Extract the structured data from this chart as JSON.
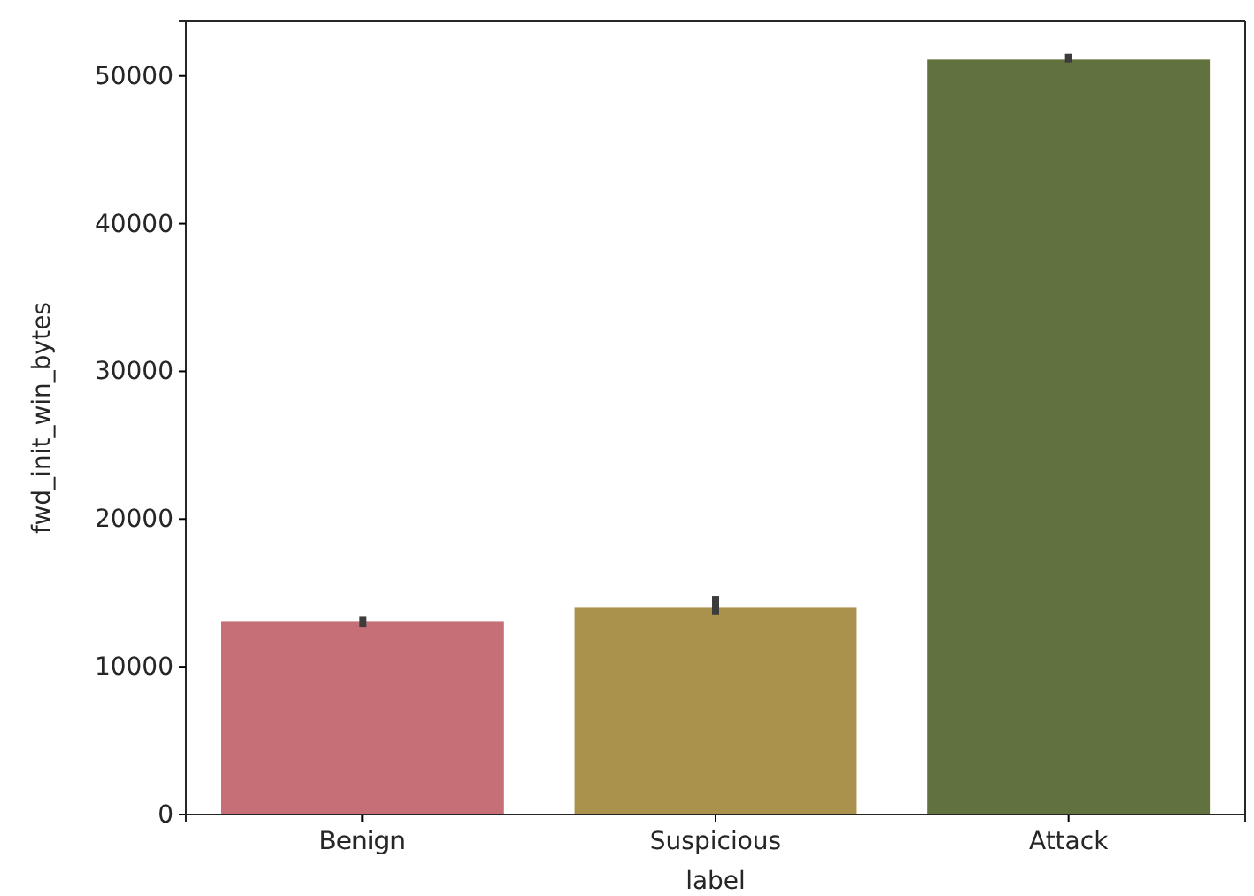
{
  "chart_data": {
    "type": "bar",
    "xlabel": "label",
    "ylabel": "fwd_init_win_bytes",
    "categories": [
      "Benign",
      "Suspicious",
      "Attack"
    ],
    "values": [
      13100,
      14000,
      51100
    ],
    "colors": [
      "#c76f76",
      "#ab924c",
      "#61723f"
    ],
    "errors": [
      [
        12700,
        13400
      ],
      [
        13500,
        14800
      ],
      [
        50900,
        51500
      ]
    ],
    "ylim": [
      0,
      53700
    ],
    "yticks": [
      0,
      10000,
      20000,
      30000,
      40000,
      50000
    ],
    "grid": false
  }
}
